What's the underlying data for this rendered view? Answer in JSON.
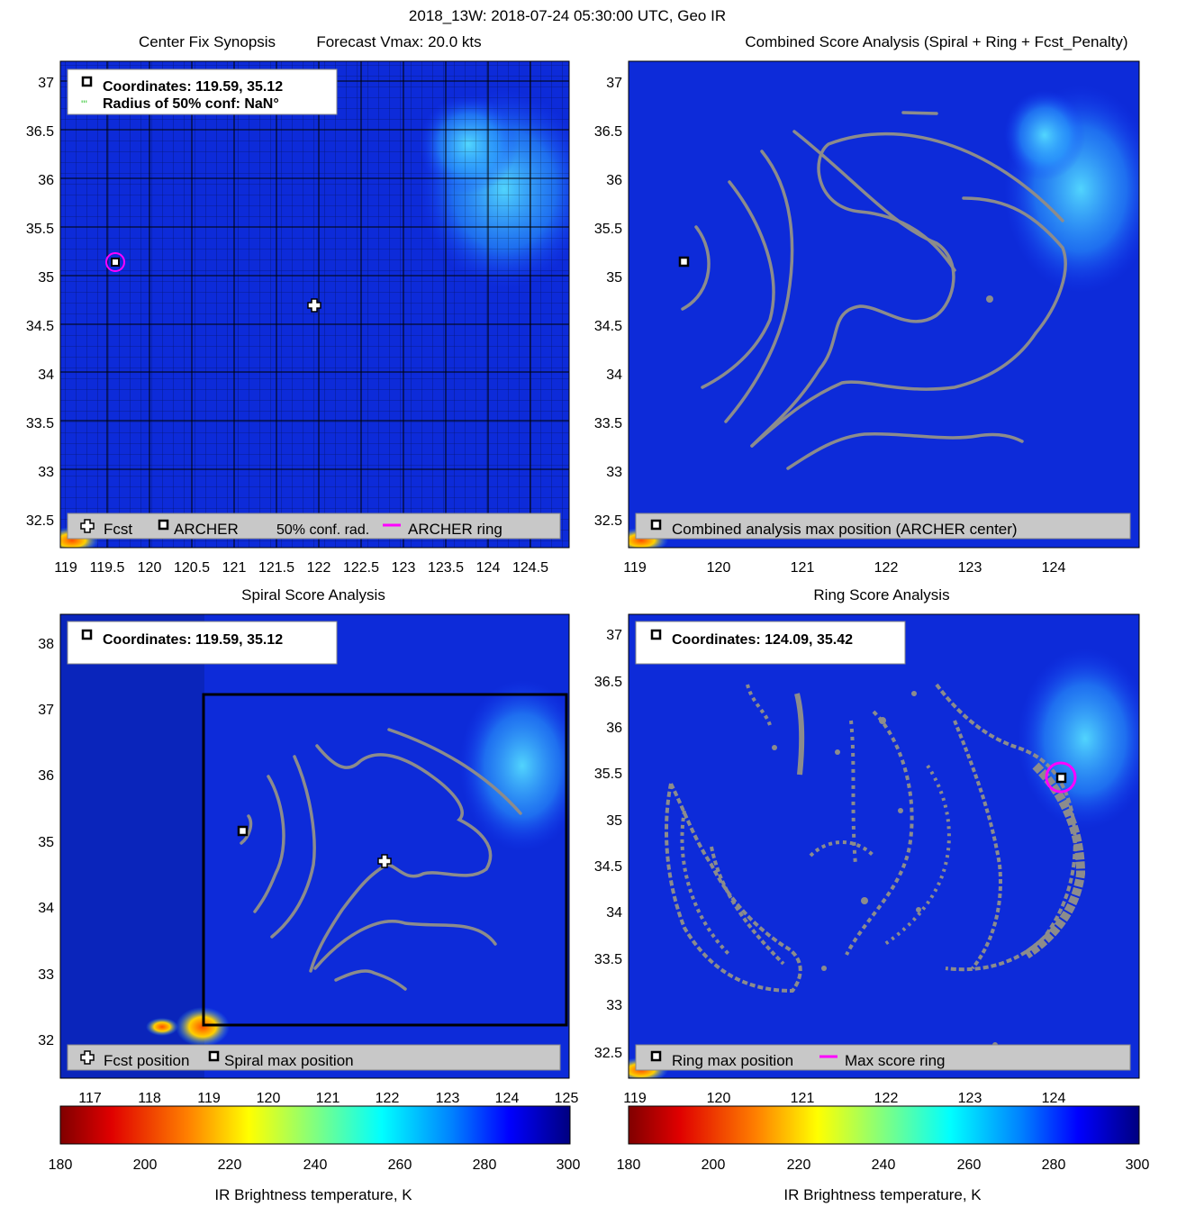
{
  "figure": {
    "title": "2018_13W: 2018-07-24 05:30:00 UTC, Geo IR",
    "colors": {
      "ir_bg": "#0d2bd9",
      "contour": "#8c8c8c",
      "ring": "#ff00ff",
      "legend_bg": "#c8c8c8"
    }
  },
  "chart_data": [
    {
      "id": "center-fix",
      "type": "map",
      "title_left": "Center Fix Synopsis",
      "title_right": "Forecast Vmax: 20.0 kts",
      "xlim": [
        119,
        125
      ],
      "ylim": [
        32.2,
        37.2
      ],
      "xticks": [
        "119",
        "119.5",
        "120",
        "120.5",
        "121",
        "121.5",
        "122",
        "122.5",
        "123",
        "123.5",
        "124",
        "124.5"
      ],
      "yticks": [
        "32.5",
        "33",
        "33.5",
        "34",
        "34.5",
        "35",
        "35.5",
        "36",
        "36.5",
        "37"
      ],
      "info": {
        "coordinates": "Coordinates: 119.59, 35.12",
        "radius": "Radius of 50% conf: NaN°"
      },
      "legend": {
        "fcst": "Fcst",
        "archer": "ARCHER",
        "conf": "50% conf. rad.",
        "ring": "ARCHER ring"
      },
      "markers": {
        "archer": [
          119.59,
          35.12
        ],
        "forecast": [
          121.98,
          34.71
        ]
      }
    },
    {
      "id": "combined-score",
      "type": "map",
      "title": "Combined Score Analysis (Spiral + Ring + Fcst_Penalty)",
      "xlim": [
        119,
        125
      ],
      "ylim": [
        32.2,
        37.2
      ],
      "xticks": [
        "119",
        "120",
        "121",
        "122",
        "123",
        "124"
      ],
      "yticks": [
        "32.5",
        "33",
        "33.5",
        "34",
        "34.5",
        "35",
        "35.5",
        "36",
        "36.5",
        "37"
      ],
      "legend": {
        "max": "Combined analysis max position (ARCHER center)"
      },
      "markers": {
        "archer": [
          119.59,
          35.12
        ]
      }
    },
    {
      "id": "spiral-score",
      "type": "map",
      "title": "Spiral Score Analysis",
      "xlim": [
        116.6,
        125
      ],
      "ylim": [
        31.6,
        38.5
      ],
      "xticks": [
        "117",
        "118",
        "119",
        "120",
        "121",
        "122",
        "123",
        "124",
        "125"
      ],
      "yticks": [
        "32",
        "33",
        "34",
        "35",
        "36",
        "37",
        "38"
      ],
      "info": {
        "coordinates": "Coordinates: 119.59, 35.12"
      },
      "legend": {
        "fcst": "Fcst position",
        "max": "Spiral max position"
      },
      "markers": {
        "spiral_max": [
          119.59,
          35.12
        ],
        "forecast": [
          121.98,
          34.71
        ]
      }
    },
    {
      "id": "ring-score",
      "type": "map",
      "title": "Ring Score Analysis",
      "xlim": [
        119,
        125
      ],
      "ylim": [
        32.2,
        37.2
      ],
      "xticks": [
        "119",
        "120",
        "121",
        "122",
        "123",
        "124"
      ],
      "yticks": [
        "32.5",
        "33",
        "33.5",
        "34",
        "34.5",
        "35",
        "35.5",
        "36",
        "36.5",
        "37"
      ],
      "info": {
        "coordinates": "Coordinates: 124.09, 35.42"
      },
      "legend": {
        "max": "Ring max position",
        "ring": "Max score ring"
      },
      "markers": {
        "ring_max": [
          124.09,
          35.42
        ]
      }
    }
  ],
  "colorbars": [
    {
      "ticks": [
        "180",
        "200",
        "220",
        "240",
        "260",
        "280",
        "300"
      ],
      "label": "IR Brightness temperature, K"
    },
    {
      "ticks": [
        "180",
        "200",
        "220",
        "240",
        "260",
        "280",
        "300"
      ],
      "label": "IR Brightness temperature, K"
    }
  ]
}
